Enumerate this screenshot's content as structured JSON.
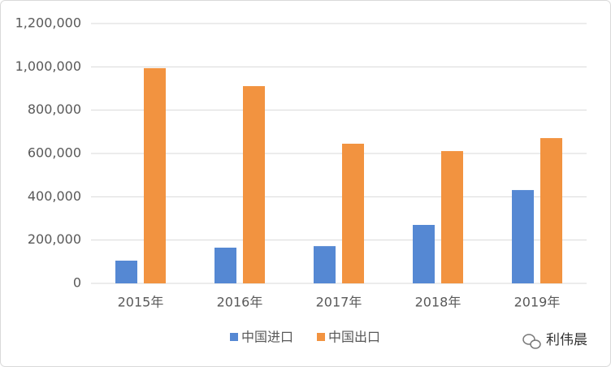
{
  "chart_data": {
    "type": "bar",
    "categories": [
      "2015年",
      "2016年",
      "2017年",
      "2018年",
      "2019年"
    ],
    "series": [
      {
        "name": "中国进口",
        "color": "#5588d3",
        "values": [
          105000,
          165000,
          172000,
          270000,
          431000
        ]
      },
      {
        "name": "中国出口",
        "color": "#f29340",
        "values": [
          994000,
          911000,
          645000,
          611000,
          671000
        ]
      }
    ],
    "ylim": [
      0,
      1200000
    ],
    "yticks": [
      0,
      {
        "value": 200000,
        "label": "200,000"
      },
      {
        "value": 400000,
        "label": "400,000"
      },
      {
        "value": 600000,
        "label": "600,000"
      },
      {
        "value": 800000,
        "label": "800,000"
      },
      {
        "value": 1000000,
        "label": "1,000,000"
      },
      {
        "value": 1200000,
        "label": "1,200,000"
      }
    ],
    "grid": true,
    "legend": "bottom",
    "watermark": "利伟晨"
  }
}
